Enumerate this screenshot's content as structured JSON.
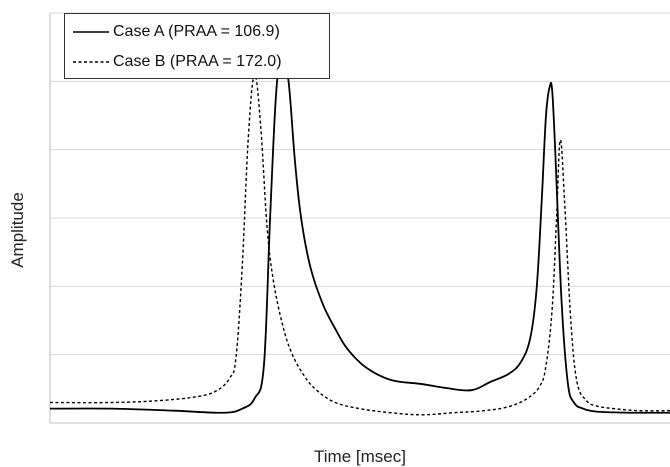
{
  "chart_data": {
    "type": "line",
    "title": "",
    "xlabel": "Time [msec]",
    "ylabel": "Amplitude",
    "xlim": [
      0,
      100
    ],
    "ylim": [
      0,
      100
    ],
    "grid": {
      "horizontal": true,
      "vertical": false
    },
    "show_tick_labels": false,
    "legend_position": "top-left",
    "series": [
      {
        "name": "Case A (PRAA = 106.9)",
        "style": "solid",
        "color": "#000000",
        "x": [
          0,
          10,
          20,
          28,
          31,
          33,
          34.5,
          35.5,
          36.5,
          37.5,
          38.5,
          39.5,
          40.5,
          42,
          44,
          46,
          48,
          51,
          55,
          60,
          64,
          68,
          71,
          74,
          76,
          77.5,
          78.5,
          79.3,
          80,
          80.6,
          81,
          81.5,
          82.5,
          83.5,
          84.5,
          86,
          88,
          91,
          95,
          100
        ],
        "y": [
          3.5,
          3.5,
          3.0,
          2.5,
          3.5,
          6.0,
          14.0,
          50.0,
          81.0,
          90.5,
          83.0,
          64.0,
          50.0,
          38.0,
          29.0,
          23.0,
          18.0,
          13.5,
          10.5,
          9.5,
          8.5,
          8.0,
          10.0,
          12.0,
          15.0,
          21.0,
          33.0,
          54.0,
          75.0,
          82.0,
          81.0,
          66.0,
          30.0,
          10.0,
          5.0,
          3.5,
          2.8,
          2.6,
          2.5,
          2.5
        ]
      },
      {
        "name": "Case B (PRAA = 172.0)",
        "style": "dashed",
        "color": "#000000",
        "x": [
          0,
          10,
          18,
          24,
          27,
          29,
          30,
          31,
          32,
          33,
          34,
          35,
          36,
          37.5,
          39,
          41,
          43,
          46,
          50,
          55,
          60,
          65,
          70,
          74,
          77,
          79,
          80,
          81,
          81.7,
          82.3,
          83,
          84,
          85,
          86.5,
          88,
          91,
          95,
          100
        ],
        "y": [
          5.0,
          5.0,
          5.5,
          6.5,
          8.0,
          11.0,
          16.0,
          38.0,
          70.0,
          85.0,
          72.0,
          48.0,
          35.0,
          24.0,
          17.0,
          11.5,
          8.0,
          5.0,
          3.5,
          2.5,
          2.0,
          2.5,
          3.0,
          4.0,
          6.0,
          9.0,
          14.0,
          28.0,
          50.0,
          69.0,
          54.0,
          25.0,
          10.0,
          5.5,
          4.2,
          3.5,
          3.0,
          3.0
        ]
      }
    ]
  }
}
